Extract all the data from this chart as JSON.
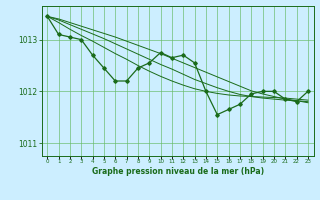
{
  "title": "Graphe pression niveau de la mer (hPa)",
  "bg_color": "#cceeff",
  "line_color": "#1a6b1a",
  "grid_color": "#66bb66",
  "x_labels": [
    "0",
    "1",
    "2",
    "3",
    "4",
    "5",
    "6",
    "7",
    "8",
    "9",
    "10",
    "11",
    "12",
    "13",
    "14",
    "15",
    "16",
    "17",
    "18",
    "19",
    "20",
    "21",
    "22",
    "23"
  ],
  "ylim": [
    1010.75,
    1013.65
  ],
  "yticks": [
    1011,
    1012,
    1013
  ],
  "main_series": [
    1013.45,
    1013.1,
    1013.05,
    1013.0,
    1012.7,
    1012.45,
    1012.2,
    1012.2,
    1012.45,
    1012.55,
    1012.75,
    1012.65,
    1012.7,
    1012.55,
    1012.0,
    1011.55,
    1011.65,
    1011.75,
    1011.95,
    1012.0,
    1012.0,
    1011.85,
    1011.8,
    1012.0
  ],
  "smooth_line1": [
    1013.45,
    1013.4,
    1013.33,
    1013.26,
    1013.19,
    1013.12,
    1013.05,
    1012.97,
    1012.89,
    1012.81,
    1012.73,
    1012.64,
    1012.55,
    1012.46,
    1012.37,
    1012.28,
    1012.19,
    1012.1,
    1012.01,
    1011.95,
    1011.9,
    1011.85,
    1011.82,
    1011.78
  ],
  "smooth_line2": [
    1013.45,
    1013.38,
    1013.29,
    1013.2,
    1013.11,
    1013.02,
    1012.92,
    1012.82,
    1012.72,
    1012.62,
    1012.52,
    1012.43,
    1012.33,
    1012.23,
    1012.15,
    1012.07,
    1012.0,
    1011.94,
    1011.9,
    1011.87,
    1011.85,
    1011.83,
    1011.82,
    1011.8
  ],
  "smooth_line3": [
    1013.45,
    1013.33,
    1013.2,
    1013.08,
    1012.97,
    1012.85,
    1012.73,
    1012.62,
    1012.5,
    1012.39,
    1012.29,
    1012.2,
    1012.12,
    1012.05,
    1012.0,
    1011.96,
    1011.93,
    1011.91,
    1011.9,
    1011.89,
    1011.88,
    1011.87,
    1011.85,
    1011.83
  ]
}
